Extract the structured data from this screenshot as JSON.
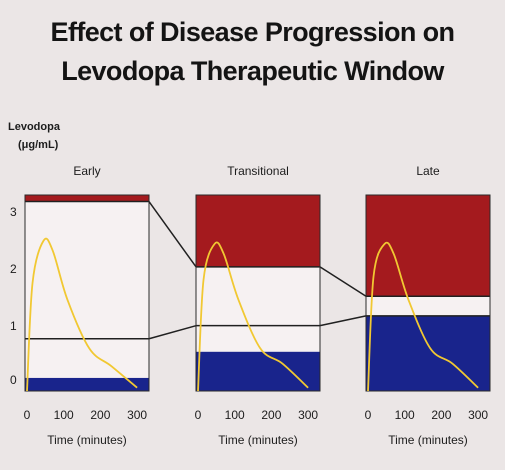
{
  "chart_data": {
    "type": "area",
    "title_lines": [
      "Effect of Disease Progression on",
      "Levodopa Therapeutic Window"
    ],
    "ylabel_lines": [
      "Levodopa",
      "(μg/mL)"
    ],
    "ylim": [
      0,
      3
    ],
    "yticks": [
      0,
      1,
      2,
      3
    ],
    "xlabel": "Time (minutes)",
    "xlim": [
      0,
      330
    ],
    "xticks": [
      0,
      100,
      200,
      300
    ],
    "colors": {
      "toxic_zone": "#a41a1e",
      "therapeutic_zone": "#f6f1f2",
      "subtherapeutic_zone": "#19248c",
      "curve": "#f1c832",
      "window_line": "#202020"
    },
    "panels": [
      {
        "label": "Early",
        "window_lower": 0.8,
        "window_upper": 2.9,
        "subtherapeutic_band": [
          0,
          0.2
        ],
        "curve": [
          [
            0,
            0
          ],
          [
            15,
            1.65
          ],
          [
            45,
            2.3
          ],
          [
            70,
            2.15
          ],
          [
            110,
            1.4
          ],
          [
            170,
            0.65
          ],
          [
            230,
            0.38
          ],
          [
            300,
            0.05
          ]
        ]
      },
      {
        "label": "Transitional",
        "window_lower": 1.0,
        "window_upper": 1.9,
        "subtherapeutic_band": [
          0,
          0.6
        ],
        "curve": [
          [
            0,
            0
          ],
          [
            15,
            1.7
          ],
          [
            45,
            2.25
          ],
          [
            70,
            2.1
          ],
          [
            110,
            1.4
          ],
          [
            170,
            0.65
          ],
          [
            230,
            0.42
          ],
          [
            300,
            0.05
          ]
        ]
      },
      {
        "label": "Late",
        "window_lower": 1.15,
        "window_upper": 1.45,
        "subtherapeutic_band": [
          0,
          1.15
        ],
        "curve": [
          [
            0,
            0
          ],
          [
            15,
            1.75
          ],
          [
            45,
            2.25
          ],
          [
            70,
            2.1
          ],
          [
            110,
            1.4
          ],
          [
            170,
            0.65
          ],
          [
            230,
            0.42
          ],
          [
            300,
            0.05
          ]
        ]
      }
    ]
  }
}
